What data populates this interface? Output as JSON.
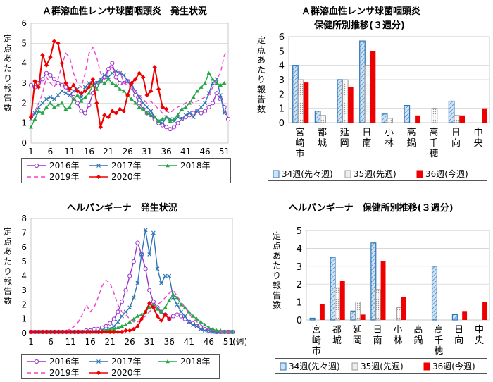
{
  "panels": {
    "strep_weekly": {
      "title": "Ａ群溶血性レンサ球菌咽頭炎　発生状況"
    },
    "strep_office": {
      "title": "Ａ群溶血性レンサ球菌咽頭炎",
      "subtitle": "保健所別推移(３週分)"
    },
    "herp_weekly": {
      "title": "ヘルパンギーナ　発生状況",
      "xunit": "(週)"
    },
    "herp_office": {
      "title": "ヘルパンギーナ　保健所別推移(３週分)"
    }
  },
  "ylabel_chars": [
    "定",
    "点",
    "あ",
    "た",
    "り",
    "報",
    "告",
    "数"
  ],
  "colors": {
    "y2016": "#9932cc",
    "y2017": "#2e75b6",
    "y2018": "#22a844",
    "y2019": "#ee44cc",
    "y2020": "#ee0000",
    "w34": "#2e75b6",
    "w35": "#aaaaaa",
    "w36": "#ee0000"
  },
  "chart_data": [
    {
      "id": "strep_weekly",
      "type": "line",
      "title": "Ａ群溶血性レンサ球菌咽頭炎　発生状況",
      "xticks": [
        "1",
        "6",
        "11",
        "16",
        "21",
        "26",
        "31",
        "36",
        "41",
        "46",
        "51"
      ],
      "ylim": [
        0,
        6
      ],
      "yticks": [
        "0",
        "1",
        "2",
        "3",
        "4",
        "5",
        "6"
      ],
      "series": [
        {
          "name": "2016年",
          "values": [
            2.9,
            2.8,
            3.0,
            3.2,
            3.5,
            3.4,
            3.2,
            3.0,
            2.9,
            2.8,
            2.5,
            2.3,
            2.0,
            1.6,
            1.5,
            1.9,
            2.5,
            3.0,
            3.1,
            3.3,
            3.7,
            4.0,
            3.3,
            3.0,
            3.0,
            3.1,
            2.8,
            2.4,
            2.0,
            1.7,
            1.5,
            1.4,
            1.2,
            1.0,
            0.9,
            0.8,
            0.7,
            0.8,
            1.0,
            1.2,
            1.3,
            1.4,
            1.5,
            1.6,
            1.5,
            1.6,
            1.8,
            2.0,
            2.5,
            2.2,
            1.8,
            1.2
          ]
        },
        {
          "name": "2017年",
          "values": [
            1.2,
            1.5,
            1.8,
            2.0,
            2.2,
            2.3,
            2.2,
            2.4,
            2.6,
            2.5,
            2.4,
            2.6,
            2.7,
            2.3,
            2.8,
            3.0,
            2.9,
            3.0,
            3.2,
            3.4,
            3.3,
            3.5,
            3.6,
            3.5,
            3.4,
            3.1,
            2.9,
            2.6,
            2.3,
            2.0,
            1.8,
            1.6,
            1.3,
            1.1,
            1.0,
            1.3,
            1.2,
            1.1,
            1.3,
            1.2,
            1.4,
            1.5,
            1.3,
            1.6,
            1.8,
            2.0,
            2.5,
            3.0,
            3.2,
            2.4,
            1.5
          ]
        },
        {
          "name": "2018年",
          "values": [
            0.8,
            1.2,
            1.6,
            1.5,
            1.8,
            2.0,
            1.8,
            1.9,
            2.0,
            1.7,
            1.8,
            2.2,
            2.4,
            2.1,
            2.3,
            2.5,
            2.9,
            2.7,
            3.1,
            3.0,
            3.2,
            3.0,
            2.9,
            2.7,
            2.6,
            2.4,
            2.2,
            2.0,
            1.8,
            1.7,
            1.5,
            1.4,
            1.3,
            1.1,
            1.2,
            1.3,
            1.1,
            1.2,
            1.4,
            1.7,
            1.8,
            2.0,
            2.3,
            2.6,
            2.8,
            3.0,
            3.5,
            3.2,
            3.0,
            2.9,
            3.0
          ]
        },
        {
          "name": "2019年",
          "values": [
            1.3,
            1.6,
            2.0,
            2.5,
            3.3,
            3.0,
            2.8,
            3.2,
            3.9,
            4.5,
            4.3,
            3.5,
            3.0,
            2.8,
            3.5,
            4.5,
            4.8,
            4.3,
            3.5,
            3.2,
            3.6,
            3.8,
            3.4,
            3.6,
            3.0,
            2.9,
            2.8,
            2.6,
            2.4,
            2.2,
            2.0,
            2.1,
            1.9,
            1.7,
            1.5,
            1.6,
            1.5,
            1.7,
            1.8,
            1.9,
            2.0,
            2.1,
            2.0,
            2.1,
            2.2,
            2.3,
            2.4,
            2.8,
            3.2,
            3.5,
            4.4,
            4.6
          ]
        },
        {
          "name": "2020年",
          "values": [
            1.3,
            3.1,
            2.8,
            4.4,
            3.9,
            4.3,
            5.1,
            5.0,
            4.0,
            3.0,
            2.7,
            2.9,
            2.6,
            2.5,
            2.6,
            2.8,
            3.2,
            2.0,
            0.8,
            1.4,
            1.3,
            1.6,
            1.5,
            1.7,
            1.6,
            2.4,
            3.0,
            3.2,
            3.5,
            3.3,
            2.4,
            2.6,
            3.8,
            2.7,
            1.8,
            1.7
          ]
        }
      ]
    },
    {
      "id": "strep_office",
      "type": "bar",
      "title": "Ａ群溶血性レンサ球菌咽頭炎　保健所別推移(３週分)",
      "categories": [
        "宮崎市",
        "都城",
        "延岡",
        "日南",
        "小林",
        "高鍋",
        "高千穂",
        "日向",
        "中央"
      ],
      "ylim": [
        0,
        6
      ],
      "yticks": [
        "0",
        "1",
        "2",
        "3",
        "4",
        "5",
        "6"
      ],
      "series": [
        {
          "name": "34週(先々週)",
          "values": [
            4.0,
            0.8,
            3.0,
            5.7,
            0.6,
            1.2,
            0.0,
            1.5,
            0.0
          ]
        },
        {
          "name": "35週(先週)",
          "values": [
            3.0,
            0.5,
            3.0,
            4.0,
            0.3,
            0.0,
            1.0,
            0.5,
            0.0
          ]
        },
        {
          "name": "36週(今週)",
          "values": [
            2.8,
            0.0,
            2.5,
            5.0,
            0.0,
            0.5,
            0.0,
            0.5,
            1.0
          ]
        }
      ]
    },
    {
      "id": "herp_weekly",
      "type": "line",
      "title": "ヘルパンギーナ　発生状況",
      "xticks": [
        "1",
        "6",
        "11",
        "16",
        "21",
        "26",
        "31",
        "36",
        "41",
        "46",
        "51"
      ],
      "ylim": [
        0,
        8
      ],
      "yticks": [
        "0",
        "1",
        "2",
        "3",
        "4",
        "5",
        "6",
        "7",
        "8"
      ],
      "series": [
        {
          "name": "2016年",
          "values": [
            0.1,
            0.1,
            0.1,
            0.1,
            0.1,
            0.1,
            0.1,
            0.1,
            0.1,
            0.1,
            0.1,
            0.1,
            0.1,
            0.1,
            0.2,
            0.2,
            0.3,
            0.3,
            0.4,
            0.5,
            0.7,
            1.0,
            1.5,
            2.2,
            3.0,
            4.0,
            5.0,
            6.3,
            5.5,
            4.5,
            3.0,
            2.2,
            1.8,
            1.5,
            1.3,
            1.0,
            1.2,
            1.3,
            1.2,
            1.0,
            0.8,
            0.7,
            0.5,
            0.4,
            0.3,
            0.2,
            0.2,
            0.1,
            0.1,
            0.1,
            0.1,
            0.1
          ]
        },
        {
          "name": "2017年",
          "values": [
            0.1,
            0.1,
            0.1,
            0.1,
            0.1,
            0.1,
            0.1,
            0.1,
            0.1,
            0.1,
            0.1,
            0.1,
            0.1,
            0.1,
            0.1,
            0.1,
            0.1,
            0.1,
            0.2,
            0.2,
            0.3,
            0.5,
            0.8,
            1.2,
            1.5,
            1.8,
            2.5,
            3.5,
            5.5,
            7.2,
            5.5,
            7.0,
            4.5,
            3.5,
            4.0,
            4.0,
            2.5,
            2.0,
            1.5,
            1.2,
            0.8,
            0.6,
            0.5,
            0.3,
            0.2,
            0.2,
            0.1,
            0.1,
            0.1,
            0.1,
            0.1,
            0.1
          ]
        },
        {
          "name": "2018年",
          "values": [
            0.1,
            0.1,
            0.1,
            0.1,
            0.1,
            0.1,
            0.1,
            0.1,
            0.1,
            0.1,
            0.1,
            0.1,
            0.1,
            0.1,
            0.1,
            0.1,
            0.1,
            0.1,
            0.2,
            0.2,
            0.3,
            0.3,
            0.4,
            0.5,
            0.6,
            0.8,
            1.0,
            1.2,
            1.3,
            1.5,
            1.8,
            2.0,
            1.7,
            1.5,
            1.8,
            2.3,
            2.7,
            2.5,
            2.0,
            1.8,
            1.5,
            1.2,
            1.0,
            0.8,
            0.6,
            0.4,
            0.3,
            0.2,
            0.2,
            0.1,
            0.1,
            0.1
          ]
        },
        {
          "name": "2019年",
          "values": [
            0.2,
            0.2,
            0.1,
            0.1,
            0.1,
            0.1,
            0.1,
            0.1,
            0.2,
            0.2,
            0.3,
            0.5,
            0.8,
            1.3,
            2.0,
            1.5,
            1.8,
            2.5,
            3.3,
            3.7,
            3.5,
            2.8,
            2.0,
            1.5,
            1.3,
            1.0,
            0.8,
            0.8,
            1.0,
            1.2,
            1.5,
            1.8,
            2.0,
            2.2,
            2.5,
            2.8,
            3.0,
            2.6,
            2.2,
            1.8,
            1.4,
            1.0,
            0.8,
            0.6,
            0.4,
            0.3,
            0.2,
            0.2,
            0.1,
            0.1,
            0.1,
            0.1
          ]
        },
        {
          "name": "2020年",
          "values": [
            0.1,
            0.1,
            0.1,
            0.1,
            0.1,
            0.1,
            0.1,
            0.1,
            0.1,
            0.1,
            0.1,
            0.1,
            0.1,
            0.1,
            0.1,
            0.1,
            0.1,
            0.1,
            0.1,
            0.1,
            0.1,
            0.1,
            0.1,
            0.1,
            0.2,
            0.2,
            0.3,
            0.5,
            1.0,
            1.5,
            2.1,
            1.8,
            1.2,
            0.9,
            1.3,
            1.0
          ]
        }
      ]
    },
    {
      "id": "herp_office",
      "type": "bar",
      "title": "ヘルパンギーナ　保健所別推移(３週分)",
      "categories": [
        "宮崎市",
        "都城",
        "延岡",
        "日南",
        "小林",
        "高鍋",
        "高千穂",
        "日向",
        "中央"
      ],
      "ylim": [
        0,
        5
      ],
      "yticks": [
        "0",
        "1",
        "2",
        "3",
        "4",
        "5"
      ],
      "series": [
        {
          "name": "34週(先々週)",
          "values": [
            0.1,
            3.5,
            0.5,
            4.3,
            0.0,
            0.0,
            3.0,
            0.3,
            0.0
          ]
        },
        {
          "name": "35週(先週)",
          "values": [
            0.0,
            1.8,
            1.0,
            1.7,
            0.7,
            0.0,
            0.0,
            0.0,
            0.0
          ]
        },
        {
          "name": "36週(今週)",
          "values": [
            0.9,
            2.2,
            0.3,
            3.3,
            1.3,
            0.0,
            0.0,
            0.5,
            1.0
          ]
        }
      ]
    }
  ]
}
